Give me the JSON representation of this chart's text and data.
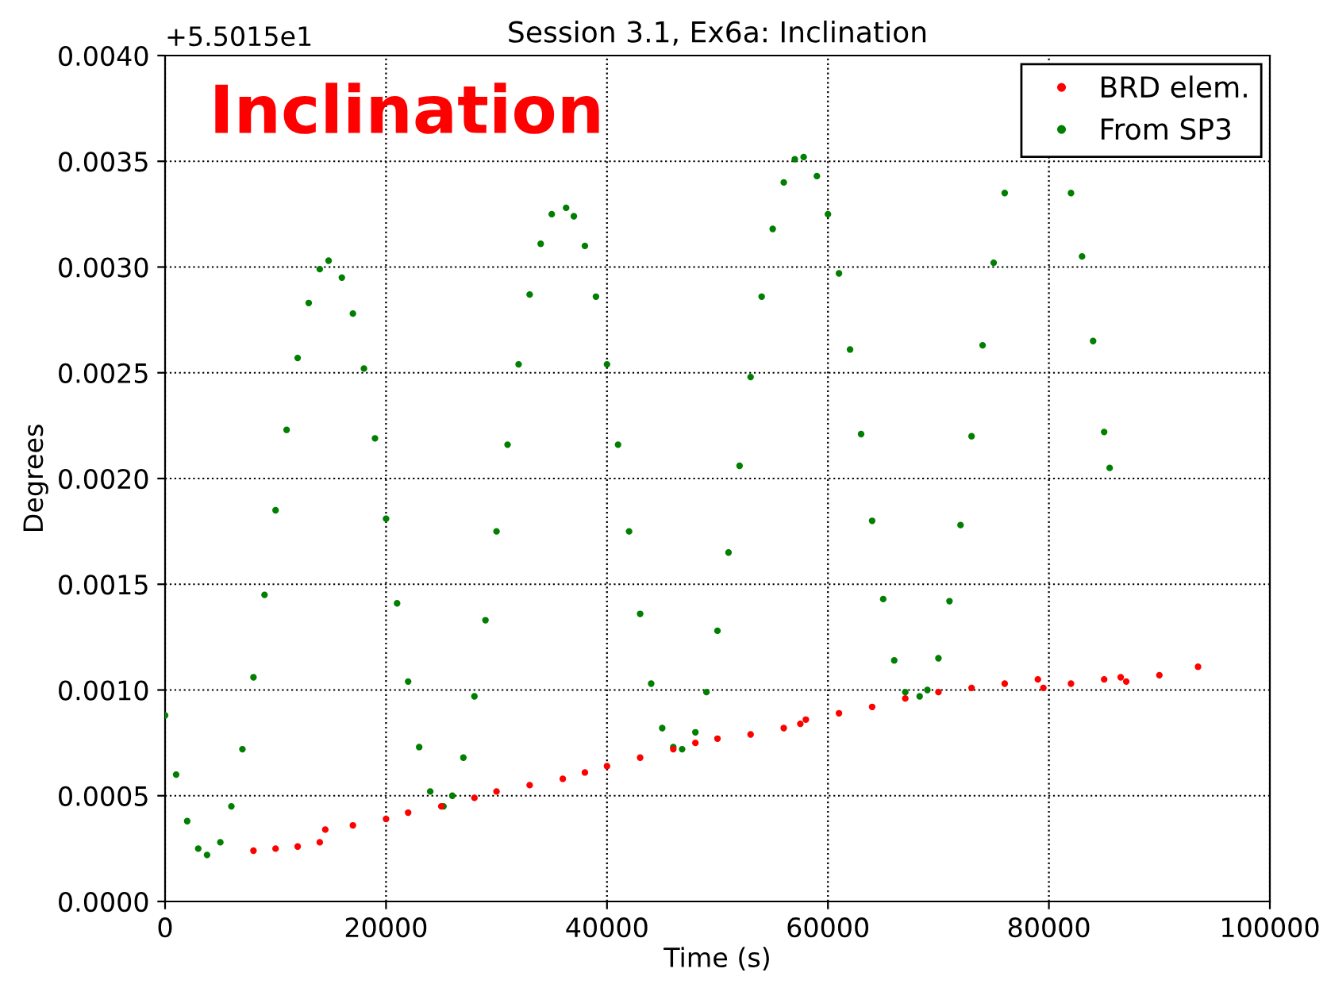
{
  "chart_data": {
    "type": "scatter",
    "title": "Session 3.1, Ex6a: Inclination",
    "xlabel": "Time (s)",
    "ylabel": "Degrees",
    "annotations": [
      "+5.5015e1",
      "Inclination"
    ],
    "xlim": [
      0,
      100000
    ],
    "xticks": [
      0,
      20000,
      40000,
      60000,
      80000,
      100000
    ],
    "ylim": [
      0,
      0.004
    ],
    "yticks": [
      {
        "value": 0,
        "label": "0.0000"
      },
      {
        "value": 0.0005,
        "label": "0.0005"
      },
      {
        "value": 0.001,
        "label": "0.0010"
      },
      {
        "value": 0.0015,
        "label": "0.0015"
      },
      {
        "value": 0.002,
        "label": "0.0020"
      },
      {
        "value": 0.0025,
        "label": "0.0025"
      },
      {
        "value": 0.003,
        "label": "0.0030"
      },
      {
        "value": 0.0035,
        "label": "0.0035"
      },
      {
        "value": 0.004,
        "label": "0.0040"
      }
    ],
    "grid": true,
    "legend": "top right",
    "marker": "circle",
    "series": [
      {
        "name": "BRD elem.",
        "color": "#ff0000",
        "x": [
          8000,
          10000,
          12000,
          14000,
          14500,
          17000,
          20000,
          22000,
          25000,
          28000,
          30000,
          33000,
          36000,
          38000,
          40000,
          43000,
          46000,
          48000,
          50000,
          53000,
          56000,
          57500,
          58000,
          61000,
          64000,
          67000,
          70000,
          73000,
          76000,
          79000,
          79500,
          82000,
          85000,
          86500,
          87000,
          90000,
          93500
        ],
        "values": [
          0.00024,
          0.00025,
          0.00026,
          0.00028,
          0.00034,
          0.00036,
          0.00039,
          0.00042,
          0.00045,
          0.00049,
          0.00052,
          0.00055,
          0.00058,
          0.00061,
          0.00064,
          0.00068,
          0.00072,
          0.00075,
          0.00077,
          0.00079,
          0.00082,
          0.00084,
          0.00086,
          0.00089,
          0.00092,
          0.00096,
          0.00099,
          0.00101,
          0.00103,
          0.00105,
          0.00101,
          0.00103,
          0.00105,
          0.00106,
          0.00104,
          0.00107,
          0.00111
        ]
      },
      {
        "name": "From SP3",
        "color": "#007f00",
        "x": [
          0,
          1000,
          2000,
          3000,
          3800,
          5000,
          6000,
          7000,
          8000,
          9000,
          10000,
          11000,
          12000,
          13000,
          14000,
          14800,
          16000,
          17000,
          18000,
          19000,
          20000,
          21000,
          22000,
          23000,
          24000,
          25200,
          26000,
          27000,
          28000,
          29000,
          30000,
          31000,
          32000,
          33000,
          34000,
          35000,
          36300,
          37000,
          38000,
          39000,
          40000,
          41000,
          42000,
          43000,
          44000,
          45000,
          46000,
          46800,
          48000,
          49000,
          50000,
          51000,
          52000,
          53000,
          54000,
          55000,
          56000,
          57000,
          57800,
          59000,
          60000,
          61000,
          62000,
          63000,
          64000,
          65000,
          66000,
          67000,
          68300,
          69000,
          70000,
          71000,
          72000,
          73000,
          74000,
          75000,
          76000,
          77000,
          78000,
          79000,
          80000,
          81000,
          82000,
          83000,
          84000,
          85000,
          85500
        ],
        "values": [
          0.00088,
          0.0006,
          0.00038,
          0.00025,
          0.00022,
          0.00028,
          0.00045,
          0.00072,
          0.00106,
          0.00145,
          0.00185,
          0.00223,
          0.00257,
          0.00283,
          0.00299,
          0.00303,
          0.00295,
          0.00278,
          0.00252,
          0.00219,
          0.00181,
          0.00141,
          0.00104,
          0.00073,
          0.00052,
          0.00045,
          0.0005,
          0.00068,
          0.00097,
          0.00133,
          0.00175,
          0.00216,
          0.00254,
          0.00287,
          0.00311,
          0.00325,
          0.00328,
          0.00324,
          0.0031,
          0.00286,
          0.00254,
          0.00216,
          0.00175,
          0.00136,
          0.00103,
          0.00082,
          0.00073,
          0.00072,
          0.0008,
          0.00099,
          0.00128,
          0.00165,
          0.00206,
          0.00248,
          0.00286,
          0.00318,
          0.0034,
          0.00351,
          0.00352,
          0.00343,
          0.00325,
          0.00297,
          0.00261,
          0.00221,
          0.0018,
          0.00143,
          0.00114,
          0.00099,
          0.00097,
          0.001,
          0.00115,
          0.00142,
          0.00178,
          0.0022,
          0.00263,
          0.00302,
          0.00335,
          null,
          null,
          null,
          null,
          null,
          0.00335,
          0.00305,
          0.00265,
          0.00222,
          0.00205
        ]
      }
    ]
  }
}
